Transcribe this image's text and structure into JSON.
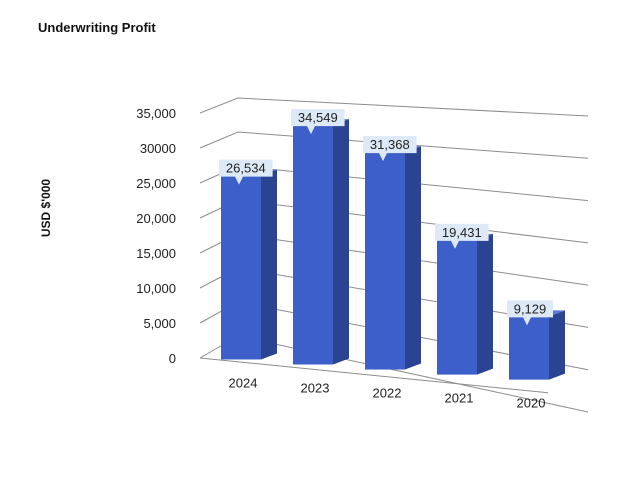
{
  "chart_data": {
    "type": "bar",
    "title": "Underwriting Profit",
    "ylabel": "USD $'000",
    "xlabel": "",
    "categories": [
      "2024",
      "2023",
      "2022",
      "2021",
      "2020"
    ],
    "values": [
      26534,
      34549,
      31368,
      19431,
      9129
    ],
    "data_labels": [
      "26,534",
      "34,549",
      "31,368",
      "19,431",
      "9,129"
    ],
    "yticks": [
      0,
      5000,
      10000,
      15000,
      20000,
      25000,
      30000,
      35000
    ],
    "ytick_labels": [
      "0",
      "5,000",
      "10,000",
      "15,000",
      "20,000",
      "25,000",
      "30000",
      "35,000"
    ],
    "ylim": [
      0,
      35000
    ],
    "grid": true,
    "legend": "none",
    "bar_color": "#3d5fc9",
    "bar_side_color": "#2a4493",
    "bar_top_color": "#5a7ad8",
    "label_bg_color": "#dde9f7"
  }
}
